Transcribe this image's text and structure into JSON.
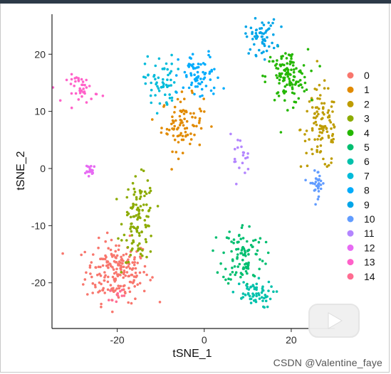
{
  "chart_data": {
    "type": "scatter",
    "xlabel": "tSNE_1",
    "ylabel": "tSNE_2",
    "xlim": [
      -35,
      30
    ],
    "ylim": [
      -28,
      27
    ],
    "x_ticks": [
      -20,
      0,
      20
    ],
    "y_ticks": [
      20,
      10,
      0,
      -10,
      -20
    ],
    "grid": false,
    "legend_position": "right",
    "series": [
      {
        "name": "0",
        "color": "#F8766D",
        "centroid": [
          -20,
          -18
        ],
        "spread": [
          6,
          4.5
        ],
        "n": 200
      },
      {
        "name": "1",
        "color": "#E18A00",
        "centroid": [
          -5,
          8
        ],
        "spread": [
          4,
          4
        ],
        "n": 90
      },
      {
        "name": "2",
        "color": "#BE9C00",
        "centroid": [
          27,
          7
        ],
        "spread": [
          4,
          6
        ],
        "n": 110
      },
      {
        "name": "3",
        "color": "#8CAB00",
        "centroid": [
          -15,
          -9
        ],
        "spread": [
          3,
          6
        ],
        "n": 110
      },
      {
        "name": "4",
        "color": "#24B700",
        "centroid": [
          19,
          16
        ],
        "spread": [
          4,
          4
        ],
        "n": 120
      },
      {
        "name": "5",
        "color": "#00BE70",
        "centroid": [
          9,
          -15
        ],
        "spread": [
          4,
          4.5
        ],
        "n": 100
      },
      {
        "name": "6",
        "color": "#00C1AB",
        "centroid": [
          11,
          -22
        ],
        "spread": [
          4,
          2
        ],
        "n": 60
      },
      {
        "name": "7",
        "color": "#00BBDA",
        "centroid": [
          -10,
          15
        ],
        "spread": [
          3,
          4
        ],
        "n": 60
      },
      {
        "name": "8",
        "color": "#00ACFC",
        "centroid": [
          -1,
          16
        ],
        "spread": [
          4,
          3.5
        ],
        "n": 70
      },
      {
        "name": "9",
        "color": "#00A5E8",
        "centroid": [
          13,
          23
        ],
        "spread": [
          3,
          2.5
        ],
        "n": 60
      },
      {
        "name": "10",
        "color": "#619CFF",
        "centroid": [
          26,
          -2.5
        ],
        "spread": [
          1.5,
          2
        ],
        "n": 30
      },
      {
        "name": "11",
        "color": "#B385FF",
        "centroid": [
          8,
          2
        ],
        "spread": [
          2,
          3
        ],
        "n": 20
      },
      {
        "name": "12",
        "color": "#E76BF3",
        "centroid": [
          -26,
          -0.5
        ],
        "spread": [
          1,
          1
        ],
        "n": 20
      },
      {
        "name": "13",
        "color": "#FF61C9",
        "centroid": [
          -28,
          14
        ],
        "spread": [
          3,
          2
        ],
        "n": 40
      },
      {
        "name": "14",
        "color": "#FF6C91",
        "centroid": [
          -20,
          -22
        ],
        "spread": [
          1.5,
          1
        ],
        "n": 10
      }
    ]
  },
  "watermark": "CSDN @Valentine_faye",
  "play_icon": "video-play-icon"
}
